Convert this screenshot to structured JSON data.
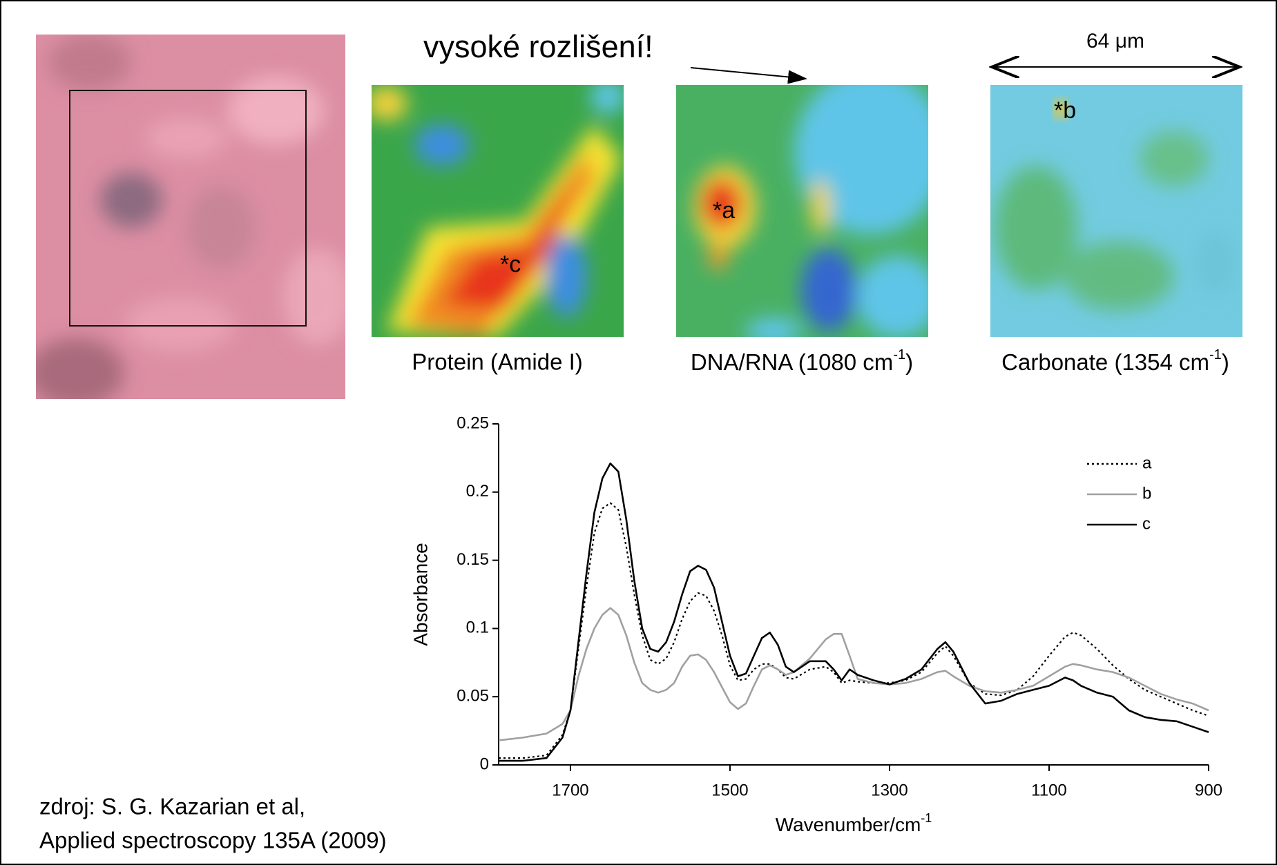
{
  "slide": {
    "title": "vysoké rozlišení!",
    "scale_label": "64 μm",
    "maps": [
      {
        "caption": "Protein (Amide I)",
        "marker": "*c"
      },
      {
        "caption": "DNA/RNA (1080 cm",
        "caption_sup": "-1",
        "caption_end": ")",
        "marker": "*a"
      },
      {
        "caption": "Carbonate (1354 cm",
        "caption_sup": "-1",
        "caption_end": ")",
        "marker": "*b"
      }
    ],
    "source": [
      "zdroj: S. G. Kazarian et al,",
      "Applied spectroscopy 135A (2009)"
    ]
  },
  "chart_data": {
    "type": "line",
    "x_label": "Wavenumber/cm",
    "x_label_sup": "-1",
    "y_label": "Absorbance",
    "x": [
      1790,
      1760,
      1730,
      1710,
      1700,
      1690,
      1680,
      1670,
      1660,
      1650,
      1640,
      1630,
      1620,
      1610,
      1600,
      1590,
      1580,
      1570,
      1560,
      1550,
      1540,
      1530,
      1520,
      1510,
      1500,
      1490,
      1480,
      1470,
      1460,
      1450,
      1440,
      1430,
      1420,
      1400,
      1380,
      1370,
      1360,
      1350,
      1340,
      1320,
      1300,
      1280,
      1260,
      1240,
      1230,
      1220,
      1200,
      1180,
      1160,
      1140,
      1120,
      1100,
      1080,
      1070,
      1060,
      1040,
      1020,
      1000,
      980,
      960,
      940,
      920,
      900
    ],
    "series": [
      {
        "name": "a",
        "color": "#000000",
        "style": "dotted",
        "values": [
          0.005,
          0.005,
          0.007,
          0.022,
          0.04,
          0.085,
          0.13,
          0.17,
          0.188,
          0.192,
          0.187,
          0.16,
          0.125,
          0.095,
          0.077,
          0.074,
          0.078,
          0.09,
          0.107,
          0.12,
          0.126,
          0.124,
          0.113,
          0.095,
          0.073,
          0.062,
          0.063,
          0.07,
          0.074,
          0.074,
          0.07,
          0.064,
          0.063,
          0.07,
          0.072,
          0.068,
          0.06,
          0.062,
          0.061,
          0.06,
          0.06,
          0.062,
          0.068,
          0.082,
          0.087,
          0.08,
          0.06,
          0.052,
          0.051,
          0.055,
          0.065,
          0.08,
          0.094,
          0.097,
          0.095,
          0.085,
          0.073,
          0.063,
          0.055,
          0.05,
          0.045,
          0.04,
          0.036
        ]
      },
      {
        "name": "b",
        "color": "#a0a0a0",
        "style": "solid",
        "values": [
          0.018,
          0.02,
          0.023,
          0.03,
          0.04,
          0.065,
          0.085,
          0.1,
          0.11,
          0.115,
          0.11,
          0.095,
          0.075,
          0.06,
          0.055,
          0.053,
          0.055,
          0.06,
          0.072,
          0.08,
          0.081,
          0.077,
          0.068,
          0.057,
          0.046,
          0.041,
          0.045,
          0.058,
          0.07,
          0.073,
          0.07,
          0.066,
          0.068,
          0.078,
          0.092,
          0.096,
          0.096,
          0.08,
          0.063,
          0.06,
          0.059,
          0.06,
          0.063,
          0.068,
          0.069,
          0.065,
          0.058,
          0.054,
          0.053,
          0.055,
          0.058,
          0.065,
          0.072,
          0.074,
          0.073,
          0.07,
          0.068,
          0.064,
          0.058,
          0.052,
          0.048,
          0.045,
          0.04
        ]
      },
      {
        "name": "c",
        "color": "#000000",
        "style": "solid",
        "values": [
          0.003,
          0.003,
          0.005,
          0.02,
          0.04,
          0.09,
          0.14,
          0.185,
          0.21,
          0.221,
          0.215,
          0.18,
          0.135,
          0.1,
          0.085,
          0.083,
          0.09,
          0.105,
          0.125,
          0.142,
          0.146,
          0.143,
          0.13,
          0.105,
          0.08,
          0.065,
          0.067,
          0.08,
          0.093,
          0.097,
          0.088,
          0.072,
          0.068,
          0.076,
          0.076,
          0.07,
          0.062,
          0.07,
          0.066,
          0.062,
          0.059,
          0.063,
          0.07,
          0.085,
          0.09,
          0.083,
          0.06,
          0.045,
          0.047,
          0.052,
          0.055,
          0.058,
          0.064,
          0.062,
          0.058,
          0.053,
          0.05,
          0.04,
          0.035,
          0.033,
          0.032,
          0.028,
          0.024
        ]
      }
    ],
    "xlim": [
      1790,
      900
    ],
    "xticks": [
      1700,
      1500,
      1300,
      1100,
      900
    ],
    "ylim": [
      0,
      0.25
    ],
    "yticks": [
      0,
      0.05,
      0.1,
      0.15,
      0.2,
      0.25
    ],
    "grid": false,
    "legend": "upper right"
  }
}
